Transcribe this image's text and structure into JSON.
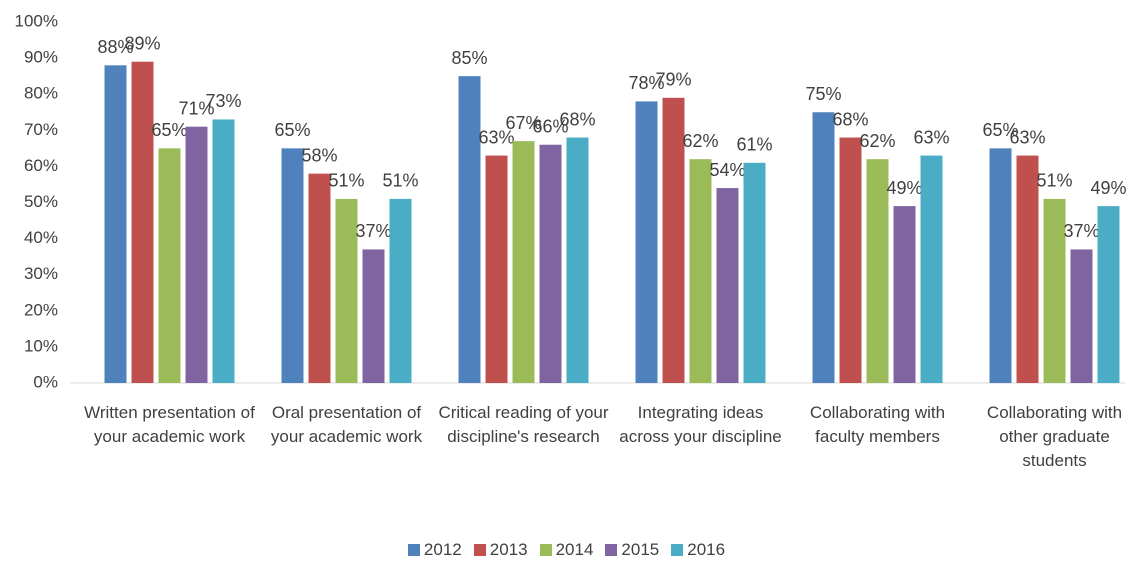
{
  "chart_data": {
    "type": "bar",
    "categories": [
      "Written presentation of your academic work",
      "Oral presentation of your academic work",
      "Critical reading of your discipline's research",
      "Integrating ideas across your discipline",
      "Collaborating with faculty members",
      "Collaborating with other graduate students"
    ],
    "series": [
      {
        "name": "2012",
        "color": "#4f81bd",
        "values": [
          88,
          65,
          85,
          78,
          75,
          65
        ],
        "value_labels": [
          "88%",
          "65%",
          "85%",
          "78%",
          "75%",
          "65%"
        ]
      },
      {
        "name": "2013",
        "color": "#c0504d",
        "values": [
          89,
          58,
          63,
          79,
          68,
          63
        ],
        "value_labels": [
          "89%",
          "58%",
          "63%",
          "79%",
          "68%",
          "63%"
        ]
      },
      {
        "name": "2014",
        "color": "#9bbb59",
        "values": [
          65,
          51,
          67,
          62,
          62,
          51
        ],
        "value_labels": [
          "65%",
          "51%",
          "67%",
          "62%",
          "62%",
          "51%"
        ]
      },
      {
        "name": "2015",
        "color": "#8064a2",
        "values": [
          71,
          37,
          66,
          54,
          49,
          37
        ],
        "value_labels": [
          "71%",
          "37%",
          "66%",
          "54%",
          "49%",
          "37%"
        ]
      },
      {
        "name": "2016",
        "color": "#4bacc6",
        "values": [
          73,
          51,
          68,
          61,
          63,
          49
        ],
        "value_labels": [
          "73%",
          "51%",
          "68%",
          "61%",
          "63%",
          "49%"
        ]
      }
    ],
    "ylim": [
      0,
      100
    ],
    "yticks": [
      {
        "value": 0,
        "label": "0%"
      },
      {
        "value": 10,
        "label": "10%"
      },
      {
        "value": 20,
        "label": "20%"
      },
      {
        "value": 30,
        "label": "30%"
      },
      {
        "value": 40,
        "label": "40%"
      },
      {
        "value": 50,
        "label": "50%"
      },
      {
        "value": 60,
        "label": "60%"
      },
      {
        "value": 70,
        "label": "70%"
      },
      {
        "value": 80,
        "label": "80%"
      },
      {
        "value": 90,
        "label": "90%"
      },
      {
        "value": 100,
        "label": "100%"
      }
    ],
    "grid": false,
    "legend": "bottom"
  }
}
